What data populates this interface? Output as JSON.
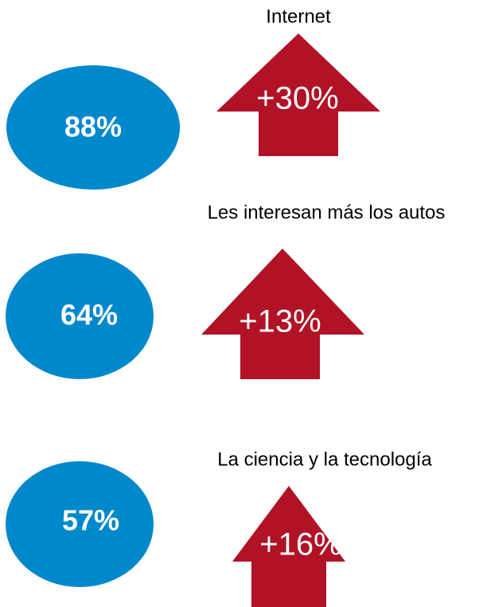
{
  "items": [
    {
      "title": "Internet",
      "share": "88%",
      "change": "+30%"
    },
    {
      "title": "Les interesan más los autos",
      "share": "64%",
      "change": "+13%"
    },
    {
      "title": "La ciencia y la tecnología",
      "share": "57%",
      "change": "+16%"
    }
  ]
}
